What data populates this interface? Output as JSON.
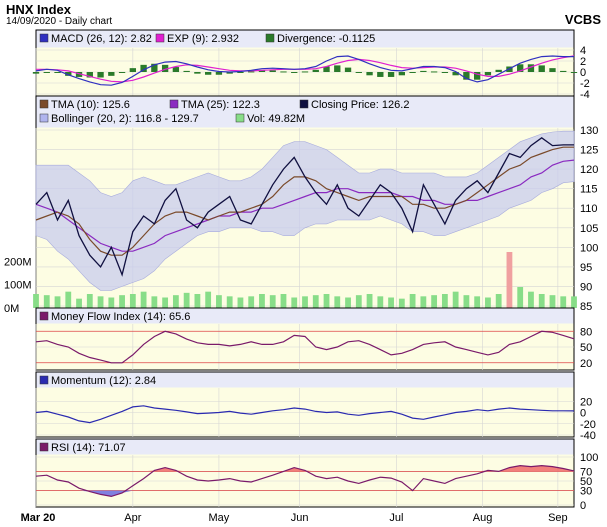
{
  "header": {
    "title": "HNX Index",
    "subtitle": "14/09/2020 - Daily chart",
    "brand": "VCBS"
  },
  "colors": {
    "panel_bg": "#fdfde3",
    "legend_bg": "#e8eaf8",
    "grid": "#d5d5d5",
    "border": "#000000",
    "macd": "#3030c0",
    "exp": "#e020d0",
    "divergence": "#2a7a2a",
    "tma10": "#7a4a2a",
    "tma25": "#8a2ac0",
    "close": "#101040",
    "bollinger_fill": "#c8ccee",
    "volume": "#88dd88",
    "volume_spike": "#f0a0a0",
    "mfi": "#7a1a6a",
    "momentum": "#2a2ab0",
    "rsi": "#7a1a6a",
    "rsi_fill": "#ee6060",
    "level_line": "#dd4444"
  },
  "legends": {
    "macd": [
      {
        "label": "MACD (26, 12): 2.82",
        "color": "#3030c0"
      },
      {
        "label": "EXP (9): 2.932",
        "color": "#e020d0"
      },
      {
        "label": "Divergence: -0.1125",
        "color": "#2a7a2a"
      }
    ],
    "price": [
      {
        "label": "TMA (10): 125.6",
        "color": "#7a4a2a"
      },
      {
        "label": "TMA (25): 122.3",
        "color": "#8a2ac0"
      },
      {
        "label": "Closing Price: 126.2",
        "color": "#101040"
      },
      {
        "label": "Bollinger (20, 2): 116.8 - 129.7",
        "color": "#b0b4ee"
      },
      {
        "label": "Vol: 49.82M",
        "color": "#88dd88"
      }
    ],
    "mfi": [
      {
        "label": "Money Flow Index (14): 65.6",
        "color": "#7a1a6a"
      }
    ],
    "momentum": [
      {
        "label": "Momentum (12): 2.84",
        "color": "#2a2ab0"
      }
    ],
    "rsi": [
      {
        "label": "RSI (14): 71.07",
        "color": "#7a1a6a"
      }
    ]
  },
  "chart_data": [
    {
      "type": "line",
      "panel": "macd",
      "ylim": [
        -4,
        4
      ],
      "y_ticks": [
        "4",
        "2",
        "0",
        "-2",
        "-4"
      ],
      "series": [
        {
          "name": "MACD (26, 12)",
          "values": [
            0.2,
            0.5,
            0.3,
            -0.5,
            -1.2,
            -1.8,
            -2.3,
            -2.4,
            -1.9,
            -0.8,
            0.4,
            1.3,
            1.8,
            1.9,
            1.5,
            0.9,
            0.4,
            0.1,
            0.0,
            0.1,
            0.3,
            0.6,
            0.7,
            0.6,
            0.5,
            0.6,
            1.0,
            2.0,
            2.8,
            2.9,
            2.3,
            1.5,
            0.8,
            0.3,
            0.2,
            0.6,
            1.0,
            1.0,
            0.8,
            0.1,
            -1.2,
            -1.8,
            -1.4,
            -0.4,
            0.6,
            1.6,
            2.3,
            2.8,
            2.9,
            2.8,
            2.8
          ]
        },
        {
          "name": "EXP (9)",
          "values": [
            0.5,
            0.5,
            0.4,
            0.2,
            -0.3,
            -0.8,
            -1.3,
            -1.7,
            -1.8,
            -1.5,
            -0.9,
            -0.2,
            0.5,
            1.0,
            1.3,
            1.2,
            0.9,
            0.6,
            0.3,
            0.2,
            0.2,
            0.3,
            0.4,
            0.5,
            0.5,
            0.5,
            0.6,
            1.0,
            1.6,
            2.1,
            2.3,
            2.1,
            1.7,
            1.2,
            0.8,
            0.7,
            0.8,
            0.9,
            0.9,
            0.7,
            0.2,
            -0.4,
            -0.8,
            -0.8,
            -0.4,
            0.2,
            0.9,
            1.6,
            2.2,
            2.6,
            2.93
          ]
        },
        {
          "name": "Divergence",
          "values": [
            -0.3,
            0.0,
            -0.1,
            -0.7,
            -0.9,
            -1.0,
            -1.0,
            -0.7,
            -0.1,
            0.7,
            1.3,
            1.5,
            1.3,
            0.9,
            0.2,
            -0.3,
            -0.5,
            -0.5,
            -0.3,
            -0.1,
            0.1,
            0.3,
            0.3,
            0.1,
            0.0,
            0.1,
            0.4,
            1.0,
            1.2,
            0.8,
            0.0,
            -0.6,
            -0.9,
            -0.9,
            -0.6,
            -0.1,
            0.2,
            0.1,
            -0.1,
            -0.6,
            -1.4,
            -1.4,
            -0.6,
            0.4,
            1.0,
            1.4,
            1.4,
            1.2,
            0.7,
            0.2,
            -0.11
          ]
        }
      ]
    },
    {
      "type": "line",
      "panel": "price",
      "ylim": [
        85,
        130
      ],
      "y_ticks": [
        "130",
        "125",
        "120",
        "115",
        "110",
        "105",
        "100",
        "95",
        "90",
        "85"
      ],
      "volume_ylim": [
        0,
        300
      ],
      "volume_ticks": [
        "200M",
        "100M",
        "0M"
      ],
      "series": [
        {
          "name": "Closing Price",
          "values": [
            111,
            114,
            107,
            112,
            103,
            98,
            95,
            100,
            93,
            104,
            108,
            106,
            112,
            115,
            107,
            105,
            109,
            111,
            113,
            107,
            106,
            111,
            116,
            120,
            123,
            118,
            114,
            111,
            116,
            110,
            108,
            112,
            116,
            114,
            110,
            104,
            116,
            111,
            106,
            112,
            115,
            117,
            114,
            119,
            124,
            123,
            126,
            128,
            126,
            126.2,
            126.2
          ]
        },
        {
          "name": "TMA (10)",
          "values": [
            107,
            108,
            109,
            108,
            106,
            102,
            99,
            98,
            98,
            100,
            103,
            106,
            108,
            109,
            109,
            108,
            107,
            108,
            109,
            109,
            110,
            111,
            113,
            116,
            118,
            118,
            117,
            115,
            114,
            113,
            112,
            113,
            113,
            113,
            113,
            111,
            111,
            110,
            110,
            111,
            112,
            114,
            116,
            118,
            120,
            121,
            123,
            124,
            125,
            125.6,
            125.6
          ]
        },
        {
          "name": "TMA (25)",
          "values": [
            111,
            110,
            109,
            107,
            105,
            103,
            101,
            100,
            99,
            99,
            100,
            101,
            103,
            104,
            105,
            106,
            107,
            108,
            108,
            109,
            109,
            110,
            110,
            111,
            112,
            113,
            114,
            114,
            115,
            115,
            114,
            114,
            114,
            114,
            113,
            113,
            112,
            112,
            111,
            111,
            112,
            112,
            113,
            114,
            115,
            116,
            118,
            119,
            121,
            122,
            122.3
          ]
        },
        {
          "name": "Bollinger Upper",
          "values": [
            121,
            121,
            121,
            121,
            119,
            117,
            114,
            113,
            114,
            117,
            118,
            117,
            116,
            116,
            117,
            118,
            119,
            118,
            117,
            117,
            118,
            120,
            123,
            126,
            127,
            127,
            126,
            125,
            123,
            121,
            119,
            119,
            120,
            120,
            119,
            119,
            119,
            119,
            118,
            118,
            118,
            119,
            121,
            123,
            125,
            127,
            128,
            129,
            129.5,
            129.7,
            129.7
          ]
        },
        {
          "name": "Bollinger Lower",
          "values": [
            103,
            102,
            99,
            97,
            94,
            91,
            89,
            89,
            90,
            91,
            92,
            94,
            97,
            99,
            101,
            103,
            104,
            104,
            105,
            105,
            105,
            104,
            104,
            103,
            103,
            105,
            106,
            106,
            107,
            107,
            107,
            107,
            108,
            107,
            106,
            104,
            104,
            103,
            103,
            104,
            105,
            106,
            107,
            108,
            110,
            111,
            112,
            114,
            115,
            116.5,
            116.8
          ]
        },
        {
          "name": "Vol",
          "values": [
            60,
            55,
            50,
            70,
            40,
            60,
            50,
            45,
            55,
            60,
            70,
            50,
            45,
            55,
            65,
            60,
            70,
            55,
            50,
            45,
            50,
            60,
            55,
            60,
            45,
            50,
            55,
            60,
            50,
            45,
            55,
            60,
            50,
            45,
            40,
            60,
            50,
            55,
            60,
            70,
            55,
            50,
            45,
            60,
            240,
            90,
            70,
            60,
            55,
            50,
            49.82
          ]
        }
      ]
    },
    {
      "type": "line",
      "panel": "mfi",
      "ylim": [
        10,
        90
      ],
      "y_ticks": [
        "80",
        "50",
        "20"
      ],
      "levels": [
        80,
        20
      ],
      "series": [
        {
          "name": "Money Flow Index (14)",
          "values": [
            60,
            62,
            55,
            50,
            38,
            30,
            25,
            20,
            20,
            35,
            55,
            70,
            80,
            75,
            65,
            58,
            55,
            55,
            52,
            55,
            60,
            55,
            55,
            60,
            72,
            70,
            50,
            45,
            50,
            60,
            62,
            55,
            45,
            35,
            38,
            45,
            55,
            58,
            60,
            50,
            45,
            40,
            35,
            40,
            55,
            60,
            70,
            80,
            78,
            72,
            65.6
          ]
        }
      ]
    },
    {
      "type": "line",
      "panel": "momentum",
      "ylim": [
        -40,
        40
      ],
      "y_ticks": [
        "20",
        "0",
        "-20",
        "-40"
      ],
      "series": [
        {
          "name": "Momentum (12)",
          "values": [
            0,
            2,
            -3,
            -8,
            -15,
            -18,
            -12,
            -5,
            2,
            10,
            12,
            8,
            6,
            4,
            1,
            -2,
            -1,
            0,
            2,
            -1,
            -3,
            0,
            3,
            5,
            8,
            6,
            2,
            0,
            1,
            -3,
            -5,
            -2,
            0,
            2,
            -3,
            -10,
            -12,
            -8,
            -4,
            0,
            2,
            5,
            3,
            6,
            8,
            6,
            5,
            4,
            3,
            3,
            2.84
          ]
        }
      ]
    },
    {
      "type": "line",
      "panel": "rsi",
      "ylim": [
        0,
        100
      ],
      "y_ticks": [
        "100",
        "70",
        "50",
        "30",
        "0"
      ],
      "levels": [
        70,
        30
      ],
      "series": [
        {
          "name": "RSI (14)",
          "values": [
            60,
            62,
            52,
            48,
            35,
            28,
            22,
            18,
            25,
            40,
            55,
            72,
            78,
            72,
            60,
            52,
            50,
            52,
            55,
            50,
            48,
            55,
            62,
            70,
            78,
            72,
            60,
            55,
            58,
            50,
            45,
            52,
            58,
            56,
            48,
            30,
            55,
            50,
            45,
            55,
            60,
            65,
            72,
            70,
            78,
            82,
            80,
            82,
            80,
            76,
            71.07
          ]
        }
      ]
    }
  ],
  "x_axis": {
    "labels": [
      "Mar 20",
      "Apr",
      "May",
      "Jun",
      "Jul",
      "Aug",
      "Sep"
    ],
    "positions": [
      0.0,
      0.18,
      0.34,
      0.49,
      0.67,
      0.83,
      0.97
    ]
  }
}
